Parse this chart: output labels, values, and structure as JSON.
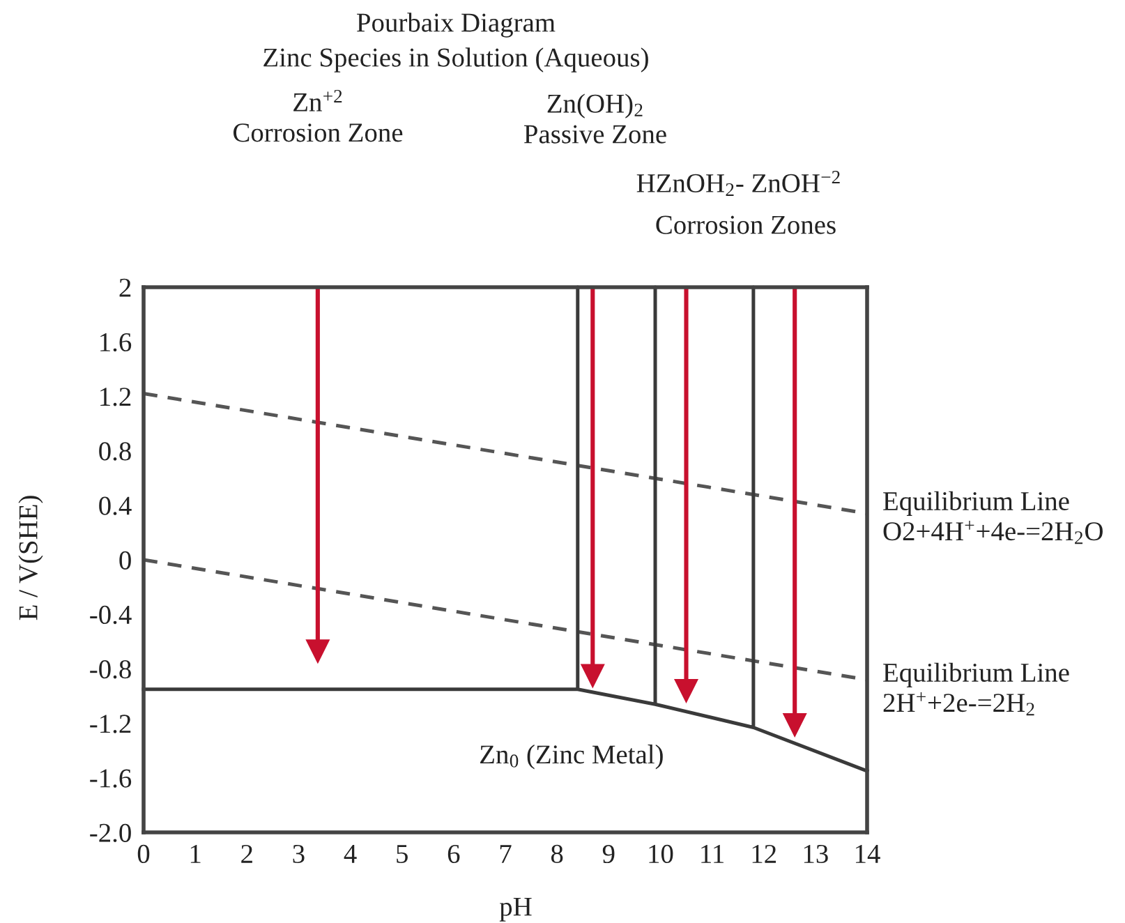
{
  "chart_data": {
    "type": "line",
    "title": "Pourbaix Diagram",
    "subtitle": "Zinc Species in Solution (Aqueous)",
    "xlabel": "pH",
    "ylabel": "E / V(SHE)",
    "xlim": [
      0,
      14
    ],
    "ylim": [
      -2.0,
      2
    ],
    "xticks": [
      0,
      1,
      2,
      3,
      4,
      5,
      6,
      7,
      8,
      9,
      10,
      11,
      12,
      13,
      14
    ],
    "yticks": [
      {
        "value": -2.0,
        "label": "-2.0"
      },
      {
        "value": -1.6,
        "label": "-1.6"
      },
      {
        "value": -1.2,
        "label": "-1.2"
      },
      {
        "value": -0.8,
        "label": "-0.8"
      },
      {
        "value": -0.4,
        "label": "-0.4"
      },
      0,
      0.4,
      0.8,
      1.2,
      1.6,
      2
    ],
    "grid": false,
    "legend": false,
    "marker": "none",
    "series": [
      {
        "name": "Equilibrium Line\nO2+4H$^{+}$+4e-=2H$_{2}$O",
        "color": "#555555",
        "line_style": "dashed",
        "x": [
          0,
          14
        ],
        "values": [
          1.22,
          0.34
        ]
      },
      {
        "name": "Equilibrium Line\n2H$^{+}$+2e-=2H$_{2}$",
        "color": "#555555",
        "line_style": "dashed",
        "x": [
          0,
          14
        ],
        "values": [
          0,
          -0.88
        ]
      },
      {
        "color": "#3a3a3a",
        "line_style": "solid",
        "x": [
          0,
          8.4,
          8.4,
          8.4,
          9.9,
          9.9,
          9.9,
          11.8,
          11.8,
          11.8,
          14
        ],
        "values": [
          -0.95,
          -0.95,
          2,
          -0.95,
          -1.06,
          2,
          -1.06,
          -1.23,
          2,
          -1.23,
          -1.55
        ]
      },
      {
        "color": "#c8102e",
        "line_style": "solid",
        "marker": "triangle",
        "x": [
          3.37,
          3.37
        ],
        "values": [
          2,
          -0.67
        ]
      },
      {
        "color": "#c8102e",
        "line_style": "solid",
        "marker": "triangle",
        "x": [
          8.69,
          8.69
        ],
        "values": [
          2,
          -0.85
        ]
      },
      {
        "color": "#c8102e",
        "line_style": "solid",
        "marker": "triangle",
        "x": [
          10.5,
          10.5
        ],
        "values": [
          2,
          -0.96
        ]
      },
      {
        "color": "#c8102e",
        "line_style": "solid",
        "marker": "triangle",
        "x": [
          12.6,
          12.6
        ],
        "values": [
          2,
          -1.21
        ]
      }
    ],
    "annotations": [
      "Zn$^{+2}$\nCorrosion Zone",
      "Zn(OH)$_{2}$\nPassive Zone",
      "HZnOH$_{2}$- ZnOH$^{−2}$",
      "Corrosion Zones",
      "Zn$_{0}$ (Zinc Metal)"
    ]
  }
}
